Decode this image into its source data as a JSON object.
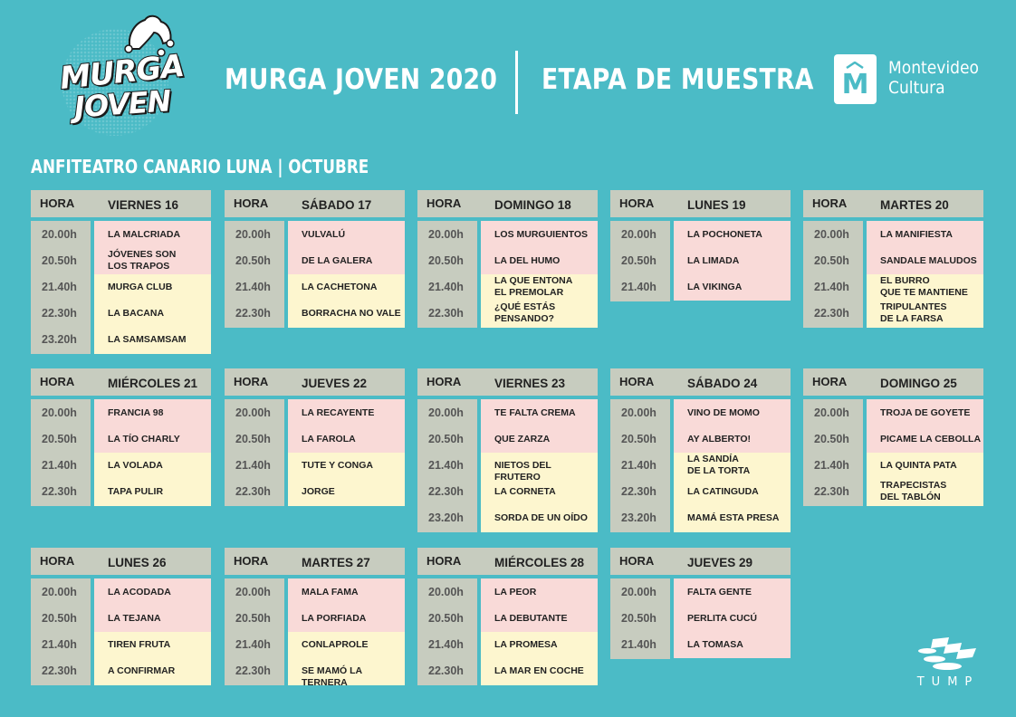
{
  "header": {
    "logo_left": {
      "line1": "MURGA",
      "line2": "JOVEN"
    },
    "title_left": "MURGA JOVEN 2020",
    "title_right": "ETAPA DE MUESTRA",
    "logo_right": {
      "glyph": "M",
      "line1": "Montevideo",
      "line2": "Cultura"
    }
  },
  "subtitle": "ANFITEATRO CANARIO LUNA | OCTUBRE",
  "time_label": "HORA",
  "colors": {
    "background": "#4bbbc6",
    "header_bg": "#c7ccbf",
    "first_group": "#f9dad8",
    "second_group": "#fdf6cf"
  },
  "days": [
    {
      "name": "VIERNES 16",
      "times": [
        "20.00h",
        "20.50h",
        "21.40h",
        "22.30h",
        "23.20h"
      ],
      "acts": [
        "LA MALCRIADA",
        "JÓVENES SON\nLOS TRAPOS",
        "MURGA CLUB",
        "LA BACANA",
        "LA SAMSAMSAM"
      ],
      "pink_count": 2
    },
    {
      "name": "SÁBADO 17",
      "times": [
        "20.00h",
        "20.50h",
        "21.40h",
        "22.30h"
      ],
      "acts": [
        "VULVALÚ",
        "DE LA GALERA",
        "LA CACHETONA",
        "BORRACHA NO VALE"
      ],
      "pink_count": 2
    },
    {
      "name": "DOMINGO 18",
      "times": [
        "20.00h",
        "20.50h",
        "21.40h",
        "22.30h"
      ],
      "acts": [
        "LOS MURGUIENTOS",
        "LA DEL HUMO",
        "LA QUE ENTONA\nEL PREMOLAR",
        "¿QUÉ ESTÁS\nPENSANDO?"
      ],
      "pink_count": 2
    },
    {
      "name": "LUNES 19",
      "times": [
        "20.00h",
        "20.50h",
        "21.40h"
      ],
      "acts": [
        "LA POCHONETA",
        "LA LIMADA",
        "LA VIKINGA"
      ],
      "pink_count": 3
    },
    {
      "name": "MARTES 20",
      "times": [
        "20.00h",
        "20.50h",
        "21.40h",
        "22.30h"
      ],
      "acts": [
        "LA MANIFIESTA",
        "SANDALE MALUDOS",
        "EL BURRO\nQUE TE MANTIENE",
        "TRIPULANTES\nDE LA FARSA"
      ],
      "pink_count": 2
    },
    {
      "name": "MIÉRCOLES 21",
      "times": [
        "20.00h",
        "20.50h",
        "21.40h",
        "22.30h"
      ],
      "acts": [
        "FRANCIA 98",
        "LA TÍO CHARLY",
        "LA VOLADA",
        "TAPA PULIR"
      ],
      "pink_count": 2
    },
    {
      "name": "JUEVES 22",
      "times": [
        "20.00h",
        "20.50h",
        "21.40h",
        "22.30h"
      ],
      "acts": [
        "LA RECAYENTE",
        "LA FAROLA",
        "TUTE Y CONGA",
        "JORGE"
      ],
      "pink_count": 2
    },
    {
      "name": "VIERNES 23",
      "times": [
        "20.00h",
        "20.50h",
        "21.40h",
        "22.30h",
        "23.20h"
      ],
      "acts": [
        "TE FALTA CREMA",
        "QUE ZARZA",
        "NIETOS DEL FRUTERO",
        "LA CORNETA",
        "SORDA DE UN OÍDO"
      ],
      "pink_count": 2
    },
    {
      "name": "SÁBADO 24",
      "times": [
        "20.00h",
        "20.50h",
        "21.40h",
        "22.30h",
        "23.20h"
      ],
      "acts": [
        "VINO DE MOMO",
        "AY ALBERTO!",
        "LA SANDÍA\nDE LA TORTA",
        "LA CATINGUDA",
        "MAMÁ ESTA PRESA"
      ],
      "pink_count": 2
    },
    {
      "name": "DOMINGO 25",
      "times": [
        "20.00h",
        "20.50h",
        "21.40h",
        "22.30h"
      ],
      "acts": [
        "TROJA DE GOYETE",
        "PICAME LA CEBOLLA",
        "LA QUINTA PATA",
        "TRAPECISTAS\nDEL TABLÓN"
      ],
      "pink_count": 2
    },
    {
      "name": "LUNES 26",
      "times": [
        "20.00h",
        "20.50h",
        "21.40h",
        "22.30h"
      ],
      "acts": [
        "LA ACODADA",
        "LA TEJANA",
        "TIREN FRUTA",
        "A CONFIRMAR"
      ],
      "pink_count": 2
    },
    {
      "name": "MARTES 27",
      "times": [
        "20.00h",
        "20.50h",
        "21.40h",
        "22.30h"
      ],
      "acts": [
        "MALA FAMA",
        "LA PORFIADA",
        "CONLAPROLE",
        "SE MAMÓ LA TERNERA"
      ],
      "pink_count": 2
    },
    {
      "name": "MIÉRCOLES 28",
      "times": [
        "20.00h",
        "20.50h",
        "21.40h",
        "22.30h"
      ],
      "acts": [
        "LA PEOR",
        "LA DEBUTANTE",
        "LA PROMESA",
        "LA MAR EN COCHE"
      ],
      "pink_count": 2
    },
    {
      "name": "JUEVES 29",
      "times": [
        "20.00h",
        "20.50h",
        "21.40h"
      ],
      "acts": [
        "FALTA GENTE",
        "PERLITA CUCÚ",
        "LA TOMASA"
      ],
      "pink_count": 3
    }
  ],
  "footer_logo": {
    "text": "TUMP"
  }
}
